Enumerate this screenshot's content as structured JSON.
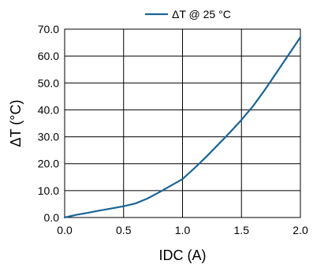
{
  "chart_data": {
    "type": "line",
    "title": "",
    "xlabel": "IDC (A)",
    "ylabel": "ΔT (°C)",
    "xlim": [
      0,
      2
    ],
    "ylim": [
      0,
      70
    ],
    "xticks": [
      "0.0",
      "0.5",
      "1.0",
      "1.5",
      "2.0"
    ],
    "yticks": [
      "0.0",
      "10.0",
      "20.0",
      "30.0",
      "40.0",
      "50.0",
      "60.0",
      "70.0"
    ],
    "grid": true,
    "legend_position": "top-center",
    "series": [
      {
        "name": "ΔT @ 25 °C",
        "color": "#1a6496",
        "x": [
          0.0,
          0.1,
          0.2,
          0.3,
          0.4,
          0.5,
          0.6,
          0.7,
          0.8,
          0.9,
          1.0,
          1.1,
          1.2,
          1.3,
          1.4,
          1.5,
          1.6,
          1.7,
          1.8,
          1.9,
          2.0
        ],
        "y": [
          0.0,
          1.0,
          1.8,
          2.6,
          3.4,
          4.2,
          5.2,
          7.0,
          9.3,
          11.8,
          14.3,
          18.3,
          22.5,
          27.0,
          31.5,
          36.3,
          41.5,
          47.5,
          54.0,
          60.5,
          67.0
        ]
      }
    ]
  }
}
